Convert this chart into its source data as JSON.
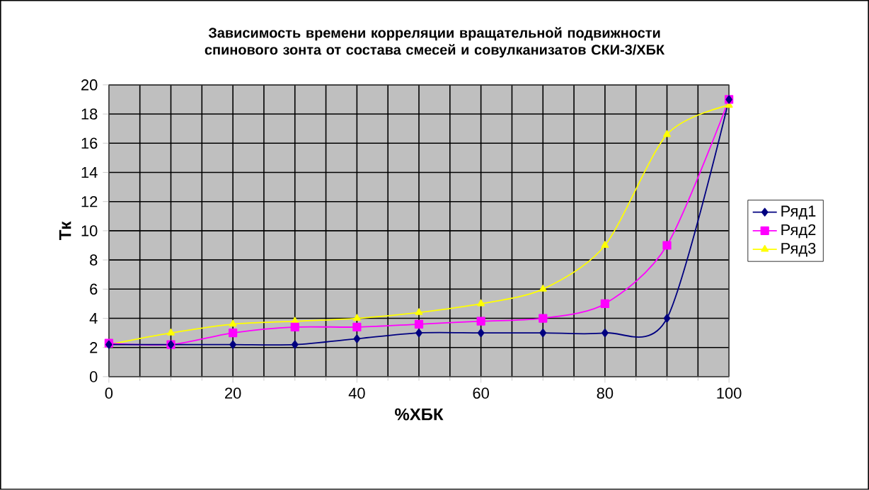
{
  "chart_data": {
    "type": "line",
    "title": "Зависимость времени корреляции вращательной подвижности спинового зонта от состава смесей и совулканизатов СКИ-3/ХБК",
    "xlabel": "%ХБК",
    "ylabel": "Tк",
    "x": [
      0,
      10,
      20,
      30,
      40,
      50,
      60,
      70,
      80,
      90,
      100
    ],
    "series": [
      {
        "name": "Ряд1",
        "color": "#000080",
        "marker": "diamond",
        "values": [
          2.2,
          2.2,
          2.2,
          2.2,
          2.6,
          3.0,
          3.0,
          3.0,
          3.0,
          4.0,
          19
        ]
      },
      {
        "name": "Ряд2",
        "color": "#ff00ff",
        "marker": "square",
        "values": [
          2.3,
          2.2,
          3.0,
          3.4,
          3.4,
          3.6,
          3.8,
          4.0,
          5.0,
          9.0,
          19
        ]
      },
      {
        "name": "Ряд3",
        "color": "#ffff00",
        "marker": "triangle",
        "values": [
          2.2,
          3.0,
          3.6,
          3.8,
          4.0,
          4.4,
          5.0,
          6.0,
          9.0,
          16.6,
          18.6
        ]
      }
    ],
    "xlim": [
      0,
      100
    ],
    "xticks": [
      0,
      20,
      40,
      60,
      80,
      100
    ],
    "ylim": [
      0,
      20
    ],
    "yticks": [
      0,
      2,
      4,
      6,
      8,
      10,
      12,
      14,
      16,
      18,
      20
    ],
    "grid": true,
    "legend": "right",
    "line_style": "solid"
  }
}
